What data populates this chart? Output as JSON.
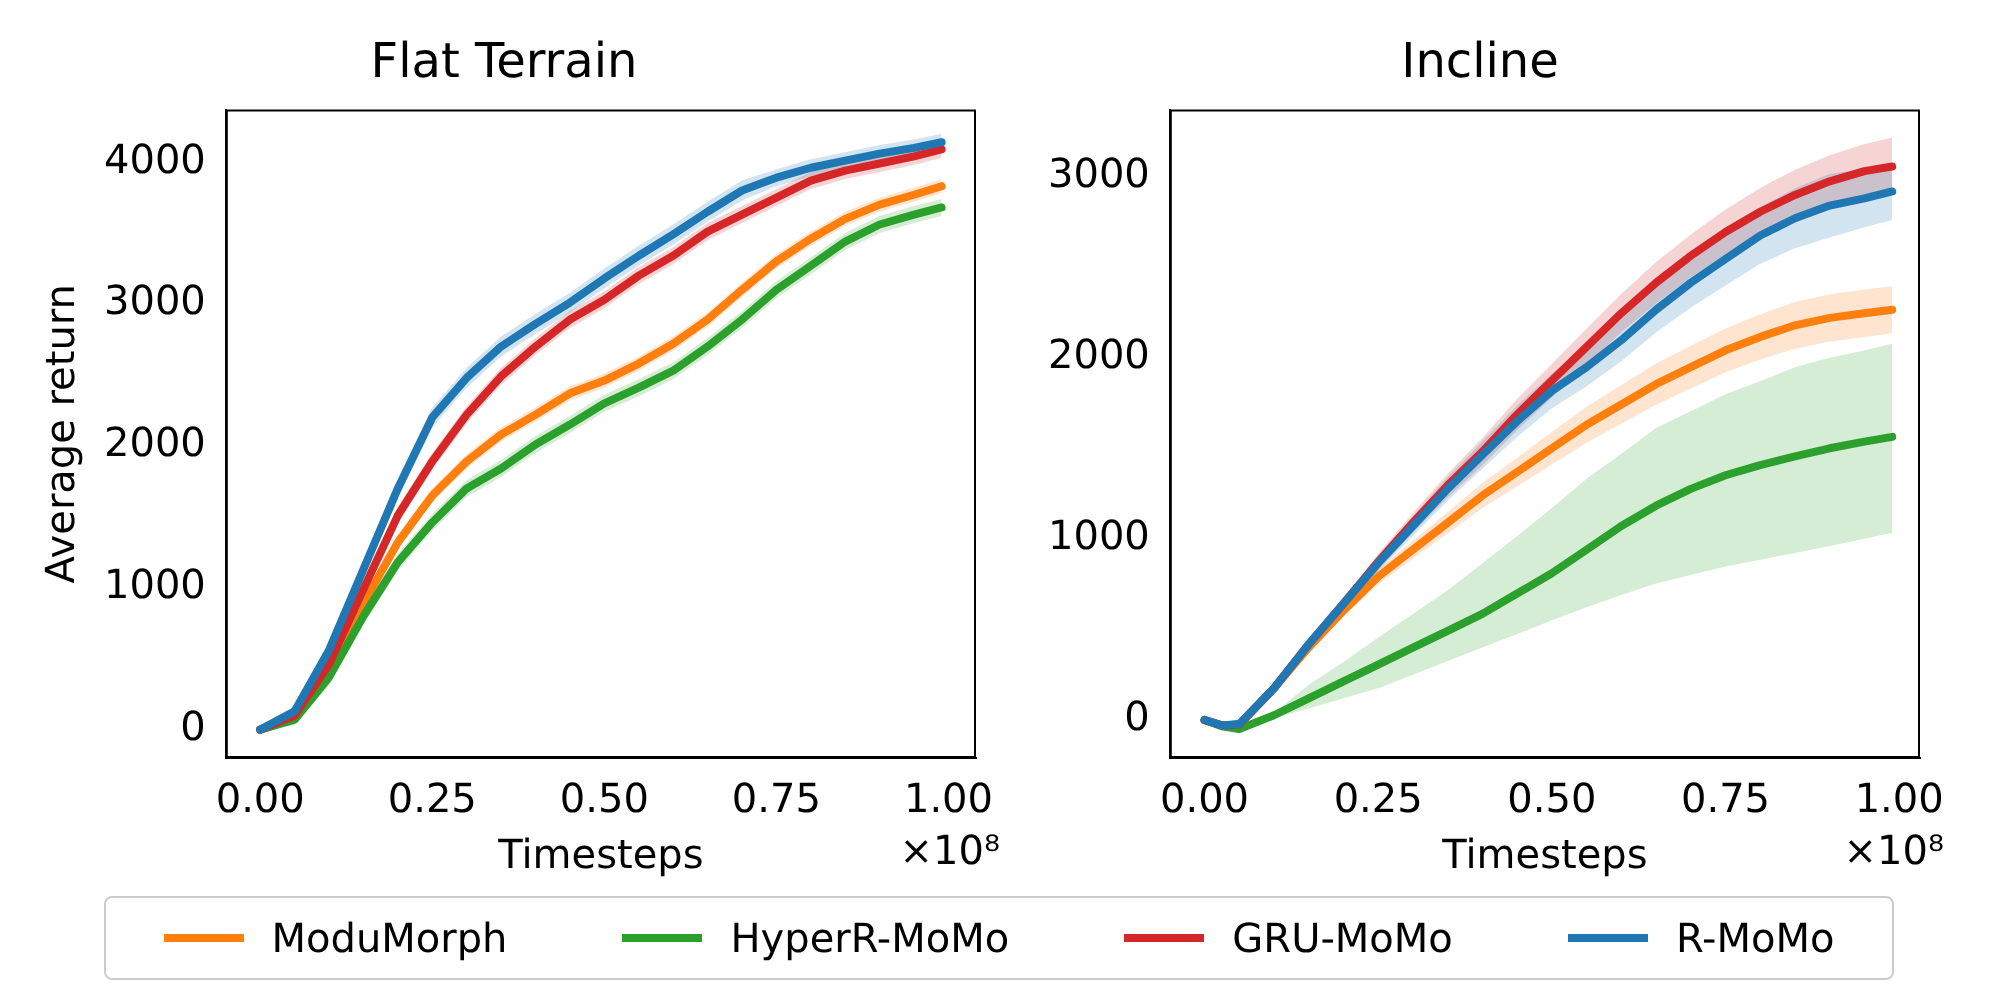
{
  "chart_data": [
    {
      "type": "line",
      "title": "Flat Terrain",
      "xlabel": "Timesteps",
      "ylabel": "Average return",
      "annotations": [
        "×10⁸"
      ],
      "legend": "bottom",
      "grid": false,
      "marker": "none",
      "line_style": "solid",
      "xlim": [
        -0.05,
        1.04
      ],
      "ylim": [
        -200,
        4370
      ],
      "xticks": [
        {
          "value": 0,
          "label": "0.00"
        },
        {
          "value": 0.25,
          "label": "0.25"
        },
        {
          "value": 0.5,
          "label": "0.50"
        },
        {
          "value": 0.75,
          "label": "0.75"
        },
        {
          "value": 1,
          "label": "1.00"
        }
      ],
      "yticks": [
        0,
        1000,
        2000,
        3000,
        4000
      ],
      "x": [
        0,
        0.05,
        0.1,
        0.15,
        0.2,
        0.25,
        0.3,
        0.35,
        0.4,
        0.45,
        0.5,
        0.55,
        0.6,
        0.65,
        0.7,
        0.75,
        0.8,
        0.85,
        0.9,
        0.95,
        0.99
      ],
      "series": [
        {
          "name": "ModuMorph",
          "color": "#ff7f0e",
          "values": [
            0,
            80,
            410,
            890,
            1320,
            1650,
            1890,
            2080,
            2220,
            2370,
            2460,
            2580,
            2720,
            2890,
            3100,
            3300,
            3460,
            3600,
            3700,
            3770,
            3830
          ],
          "lower": [
            0,
            40,
            360,
            840,
            1270,
            1600,
            1840,
            2030,
            2170,
            2320,
            2410,
            2530,
            2670,
            2840,
            3050,
            3250,
            3410,
            3550,
            3650,
            3720,
            3780
          ],
          "upper": [
            0,
            120,
            460,
            940,
            1370,
            1700,
            1940,
            2130,
            2270,
            2420,
            2510,
            2630,
            2770,
            2940,
            3150,
            3350,
            3510,
            3650,
            3750,
            3820,
            3880
          ]
        },
        {
          "name": "HyperR-MoMo",
          "color": "#2ca02c",
          "values": [
            0,
            70,
            370,
            800,
            1180,
            1460,
            1700,
            1840,
            2010,
            2150,
            2300,
            2410,
            2530,
            2700,
            2890,
            3100,
            3270,
            3440,
            3560,
            3630,
            3680
          ],
          "lower": [
            0,
            30,
            310,
            740,
            1120,
            1400,
            1640,
            1780,
            1950,
            2090,
            2240,
            2350,
            2470,
            2640,
            2830,
            3040,
            3210,
            3380,
            3500,
            3570,
            3620
          ],
          "upper": [
            0,
            110,
            430,
            860,
            1240,
            1520,
            1760,
            1900,
            2070,
            2210,
            2360,
            2470,
            2590,
            2760,
            2950,
            3160,
            3330,
            3500,
            3620,
            3690,
            3740
          ]
        },
        {
          "name": "GRU-MoMo",
          "color": "#d62728",
          "values": [
            0,
            100,
            460,
            990,
            1510,
            1890,
            2220,
            2490,
            2700,
            2890,
            3030,
            3200,
            3340,
            3510,
            3630,
            3750,
            3870,
            3940,
            3990,
            4040,
            4090
          ],
          "lower": [
            0,
            60,
            400,
            930,
            1450,
            1830,
            2160,
            2430,
            2640,
            2830,
            2970,
            3140,
            3280,
            3450,
            3570,
            3690,
            3810,
            3880,
            3930,
            3980,
            4030
          ],
          "upper": [
            0,
            140,
            520,
            1050,
            1570,
            1950,
            2280,
            2550,
            2760,
            2950,
            3090,
            3260,
            3400,
            3570,
            3690,
            3810,
            3930,
            4000,
            4050,
            4100,
            4150
          ]
        },
        {
          "name": "R-MoMo",
          "color": "#1f77b4",
          "values": [
            0,
            130,
            560,
            1130,
            1700,
            2200,
            2480,
            2700,
            2860,
            3010,
            3180,
            3340,
            3490,
            3650,
            3800,
            3890,
            3960,
            4010,
            4060,
            4100,
            4140
          ],
          "lower": [
            0,
            90,
            500,
            1060,
            1630,
            2130,
            2410,
            2630,
            2790,
            2940,
            3110,
            3270,
            3420,
            3580,
            3730,
            3830,
            3900,
            3950,
            4000,
            4040,
            4080
          ],
          "upper": [
            0,
            170,
            620,
            1200,
            1770,
            2270,
            2550,
            2770,
            2930,
            3080,
            3250,
            3410,
            3560,
            3720,
            3870,
            3950,
            4020,
            4070,
            4120,
            4160,
            4200
          ]
        }
      ]
    },
    {
      "type": "line",
      "title": "Incline",
      "xlabel": "Timesteps",
      "annotations": [
        "×10⁸"
      ],
      "legend": "bottom",
      "grid": false,
      "marker": "none",
      "line_style": "solid",
      "xlim": [
        -0.05,
        1.03
      ],
      "ylim": [
        -210,
        3370
      ],
      "xticks": [
        {
          "value": 0,
          "label": "0.00"
        },
        {
          "value": 0.25,
          "label": "0.25"
        },
        {
          "value": 0.5,
          "label": "0.50"
        },
        {
          "value": 0.75,
          "label": "0.75"
        },
        {
          "value": 1,
          "label": "1.00"
        }
      ],
      "yticks": [
        0,
        1000,
        2000,
        3000
      ],
      "x": [
        0,
        0.025,
        0.05,
        0.1,
        0.15,
        0.2,
        0.25,
        0.3,
        0.35,
        0.4,
        0.45,
        0.5,
        0.55,
        0.6,
        0.65,
        0.7,
        0.75,
        0.8,
        0.85,
        0.9,
        0.95,
        0.99
      ],
      "series": [
        {
          "name": "ModuMorph",
          "color": "#ff7f0e",
          "values": [
            0,
            -30,
            -25,
            175,
            400,
            604,
            791,
            940,
            1089,
            1239,
            1369,
            1500,
            1630,
            1742,
            1854,
            1948,
            2041,
            2115,
            2179,
            2220,
            2246,
            2265
          ],
          "lower": [
            0,
            -35,
            -35,
            160,
            375,
            570,
            750,
            890,
            1030,
            1170,
            1290,
            1410,
            1530,
            1635,
            1740,
            1830,
            1920,
            1990,
            2050,
            2090,
            2115,
            2135
          ],
          "upper": [
            0,
            -25,
            -15,
            190,
            425,
            638,
            832,
            990,
            1148,
            1308,
            1448,
            1590,
            1730,
            1849,
            1968,
            2066,
            2162,
            2240,
            2308,
            2350,
            2377,
            2395
          ]
        },
        {
          "name": "HyperR-MoMo",
          "color": "#2ca02c",
          "values": [
            0,
            -35,
            -50,
            26,
            119,
            213,
            306,
            399,
            492,
            586,
            698,
            810,
            940,
            1071,
            1183,
            1276,
            1351,
            1407,
            1455,
            1500,
            1537,
            1563
          ],
          "lower": [
            0,
            -40,
            -55,
            10,
            63,
            120,
            175,
            250,
            325,
            400,
            474,
            550,
            623,
            690,
            754,
            800,
            847,
            885,
            922,
            960,
            1000,
            1034
          ],
          "upper": [
            0,
            -30,
            -45,
            40,
            194,
            320,
            455,
            585,
            716,
            865,
            1015,
            1170,
            1332,
            1470,
            1612,
            1705,
            1798,
            1870,
            1948,
            2000,
            2040,
            2078
          ]
        },
        {
          "name": "GRU-MoMo",
          "color": "#d62728",
          "values": [
            0,
            -30,
            -25,
            175,
            418,
            642,
            873,
            1089,
            1295,
            1481,
            1686,
            1873,
            2060,
            2246,
            2414,
            2563,
            2694,
            2806,
            2899,
            2974,
            3030,
            3056
          ],
          "lower": [
            0,
            -35,
            -35,
            160,
            395,
            610,
            830,
            1035,
            1230,
            1405,
            1600,
            1780,
            1960,
            2140,
            2300,
            2445,
            2570,
            2675,
            2760,
            2830,
            2880,
            2900
          ],
          "upper": [
            0,
            -25,
            -15,
            190,
            441,
            674,
            916,
            1143,
            1360,
            1557,
            1772,
            1966,
            2160,
            2352,
            2528,
            2681,
            2818,
            2937,
            3038,
            3118,
            3180,
            3216
          ]
        },
        {
          "name": "R-MoMo",
          "color": "#1f77b4",
          "values": [
            0,
            -30,
            -22,
            175,
            418,
            642,
            866,
            1071,
            1276,
            1463,
            1649,
            1817,
            1948,
            2097,
            2265,
            2414,
            2545,
            2675,
            2770,
            2840,
            2880,
            2918
          ],
          "lower": [
            0,
            -35,
            -30,
            160,
            395,
            610,
            823,
            1017,
            1211,
            1387,
            1563,
            1721,
            1842,
            1981,
            2139,
            2278,
            2399,
            2519,
            2604,
            2664,
            2720,
            2760
          ],
          "upper": [
            0,
            -25,
            -15,
            190,
            441,
            674,
            909,
            1125,
            1341,
            1539,
            1735,
            1913,
            2054,
            2213,
            2391,
            2550,
            2691,
            2831,
            2936,
            3016,
            3040,
            3067
          ]
        }
      ]
    }
  ]
}
